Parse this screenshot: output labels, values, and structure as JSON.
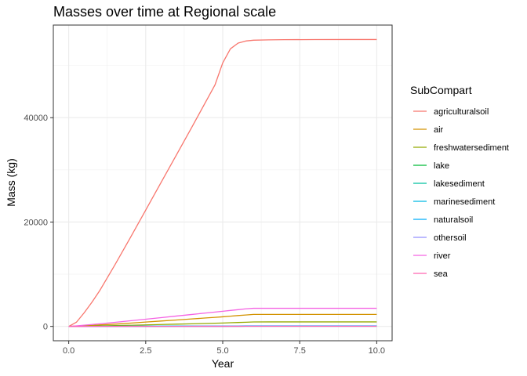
{
  "chart_data": {
    "type": "line",
    "title": "Masses over time at Regional scale",
    "xlabel": "Year",
    "ylabel": "Mass (kg)",
    "xlim": [
      -0.5,
      10.5
    ],
    "ylim": [
      -2750,
      57750
    ],
    "xticks": [
      0.0,
      2.5,
      5.0,
      7.5,
      10.0
    ],
    "xtick_labels": [
      "0.0",
      "2.5",
      "5.0",
      "7.5",
      "10.0"
    ],
    "yticks": [
      0,
      20000,
      40000
    ],
    "ytick_labels": [
      "0",
      "20000",
      "40000"
    ],
    "grid": true,
    "legend_title": "SubCompart",
    "legend_position": "right",
    "x": [
      0,
      0.25,
      0.5,
      0.75,
      1,
      1.5,
      2,
      2.5,
      3,
      3.5,
      4,
      4.5,
      4.75,
      5,
      5.25,
      5.5,
      5.75,
      6,
      6.5,
      7,
      8,
      9,
      10
    ],
    "series": [
      {
        "name": "agriculturalsoil",
        "color": "#F8766D",
        "values": [
          0,
          800,
          2600,
          4600,
          6800,
          11800,
          17000,
          22300,
          27600,
          32900,
          38200,
          43600,
          46300,
          50500,
          53200,
          54300,
          54700,
          54850,
          54920,
          54950,
          54970,
          54980,
          54980
        ]
      },
      {
        "name": "air",
        "color": "#D39200",
        "values": [
          0,
          60,
          130,
          200,
          280,
          430,
          630,
          830,
          1030,
          1230,
          1430,
          1640,
          1740,
          1840,
          1960,
          2080,
          2190,
          2300,
          2300,
          2300,
          2300,
          2300,
          2300
        ]
      },
      {
        "name": "freshwatersediment",
        "color": "#93AA00",
        "values": [
          0,
          20,
          40,
          70,
          100,
          160,
          220,
          290,
          360,
          430,
          500,
          570,
          610,
          650,
          700,
          750,
          800,
          850,
          860,
          860,
          860,
          860,
          860
        ]
      },
      {
        "name": "lake",
        "color": "#00BA38",
        "values": [
          0,
          3,
          6,
          9,
          12,
          18,
          24,
          30,
          36,
          42,
          48,
          54,
          57,
          60,
          62,
          64,
          66,
          68,
          68,
          68,
          68,
          68,
          68
        ]
      },
      {
        "name": "lakesediment",
        "color": "#00C19F",
        "values": [
          0,
          2,
          4,
          6,
          8,
          12,
          16,
          20,
          24,
          28,
          32,
          36,
          38,
          40,
          42,
          44,
          46,
          48,
          48,
          48,
          48,
          48,
          48
        ]
      },
      {
        "name": "marinesediment",
        "color": "#00B9E3",
        "values": [
          0,
          1,
          2,
          3,
          4,
          6,
          8,
          10,
          12,
          14,
          16,
          18,
          19,
          20,
          21,
          22,
          23,
          24,
          24,
          24,
          24,
          24,
          24
        ]
      },
      {
        "name": "naturalsoil",
        "color": "#00ADFA",
        "values": [
          0,
          4,
          8,
          12,
          16,
          24,
          32,
          40,
          48,
          56,
          64,
          72,
          76,
          80,
          84,
          88,
          92,
          96,
          96,
          96,
          96,
          96,
          96
        ]
      },
      {
        "name": "othersoil",
        "color": "#9590FF",
        "values": [
          0,
          2,
          4,
          6,
          8,
          12,
          16,
          20,
          24,
          28,
          32,
          36,
          38,
          40,
          42,
          44,
          46,
          48,
          48,
          48,
          48,
          48,
          48
        ]
      },
      {
        "name": "river",
        "color": "#F564E3",
        "values": [
          0,
          100,
          230,
          360,
          500,
          780,
          1080,
          1380,
          1680,
          1990,
          2290,
          2600,
          2750,
          2900,
          3060,
          3210,
          3370,
          3470,
          3470,
          3470,
          3470,
          3470,
          3470
        ]
      },
      {
        "name": "sea",
        "color": "#FF64B0",
        "values": [
          0,
          1,
          2,
          3,
          4,
          6,
          8,
          10,
          12,
          14,
          16,
          18,
          19,
          20,
          21,
          22,
          23,
          24,
          24,
          24,
          24,
          24,
          24
        ]
      }
    ]
  }
}
